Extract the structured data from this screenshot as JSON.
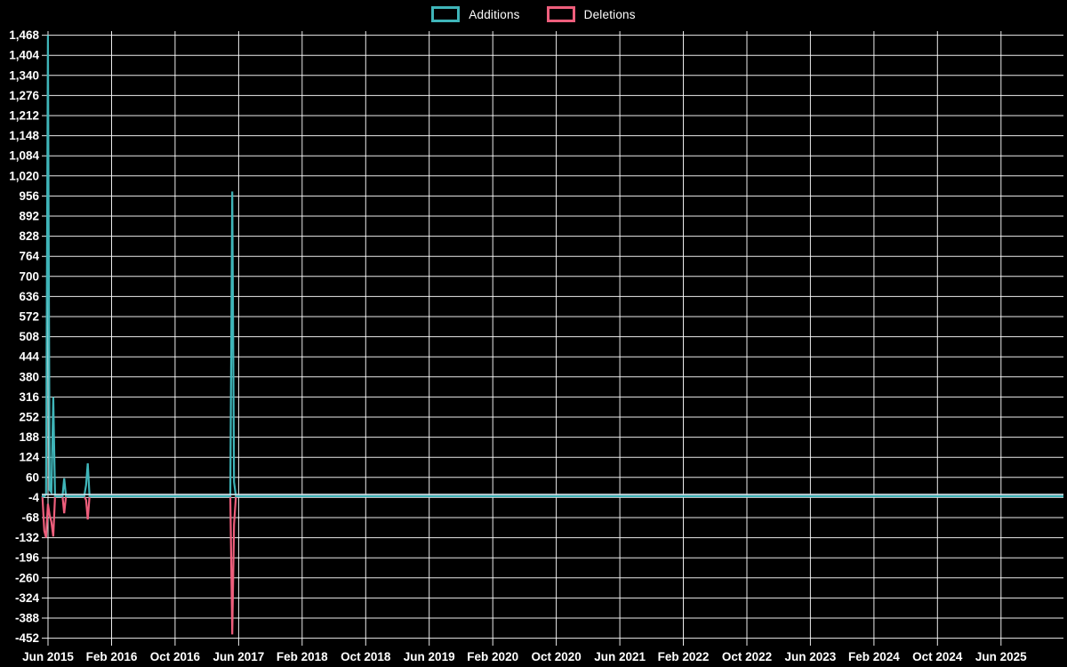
{
  "legend": {
    "items": [
      {
        "label": "Additions",
        "color": "#3fb5b9"
      },
      {
        "label": "Deletions",
        "color": "#ee5e7c"
      }
    ]
  },
  "chart_data": {
    "type": "line",
    "title": "",
    "xlabel": "",
    "ylabel": "",
    "background": "#000000",
    "grid": true,
    "grid_color": "#ffffff",
    "zero_line_highlight_color": "#cfe3ea",
    "legend_position": "top-center",
    "y_range": [
      -452,
      1468
    ],
    "y_tick_step": 64,
    "y_ticks": {
      "values": [
        1468,
        1404,
        1340,
        1276,
        1212,
        1148,
        1084,
        1020,
        956,
        892,
        828,
        764,
        700,
        636,
        572,
        508,
        444,
        380,
        316,
        252,
        188,
        124,
        60,
        -4,
        -68,
        -132,
        -196,
        -260,
        -324,
        -388,
        -452
      ],
      "labels": [
        "1,468",
        "1,404",
        "1,340",
        "1,276",
        "1,212",
        "1,148",
        "1,084",
        "1,020",
        "956",
        "892",
        "828",
        "764",
        "700",
        "636",
        "572",
        "508",
        "444",
        "380",
        "316",
        "252",
        "188",
        "124",
        "60",
        "-4",
        "-68",
        "-132",
        "-196",
        "-260",
        "-324",
        "-388",
        "-452"
      ]
    },
    "x_ticks": {
      "labels": [
        "Jun 2015",
        "Feb 2016",
        "Oct 2016",
        "Jun 2017",
        "Feb 2018",
        "Oct 2018",
        "Jun 2019",
        "Feb 2020",
        "Oct 2020",
        "Jun 2021",
        "Feb 2022",
        "Oct 2022",
        "Jun 2023",
        "Feb 2024",
        "Oct 2024",
        "Jun 2025"
      ],
      "interval_months": 8
    },
    "x_dates": [
      "2015-05-10",
      "2015-05-17",
      "2015-05-24",
      "2015-05-31",
      "2015-06-07",
      "2015-06-14",
      "2015-06-21",
      "2015-06-28",
      "2015-07-26",
      "2015-08-02",
      "2015-08-09",
      "2015-10-18",
      "2015-10-25",
      "2015-11-01",
      "2015-11-08",
      "2017-04-30",
      "2017-05-07",
      "2017-05-14",
      "2017-05-21"
    ],
    "series": [
      {
        "name": "Additions",
        "color": "#3fb5b9",
        "values": [
          0,
          0,
          6,
          1468,
          20,
          12,
          316,
          0,
          0,
          57,
          0,
          0,
          35,
          105,
          0,
          0,
          970,
          45,
          0
        ]
      },
      {
        "name": "Deletions",
        "color": "#ee5e7c",
        "values": [
          0,
          -110,
          -132,
          -24,
          -60,
          -82,
          -128,
          0,
          0,
          -54,
          0,
          0,
          -12,
          -74,
          0,
          0,
          -440,
          -90,
          0
        ]
      }
    ]
  }
}
